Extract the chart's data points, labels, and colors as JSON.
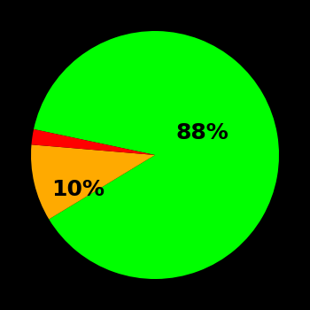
{
  "slices": [
    88,
    10,
    2
  ],
  "colors": [
    "#00ff00",
    "#ffaa00",
    "#ff0000"
  ],
  "label_texts": [
    "88%",
    "10%",
    ""
  ],
  "background_color": "#000000",
  "startangle": 168,
  "counterclock": false,
  "figsize": [
    3.5,
    3.5
  ],
  "dpi": 100,
  "label_fontsize": 18,
  "label_color": "#000000"
}
